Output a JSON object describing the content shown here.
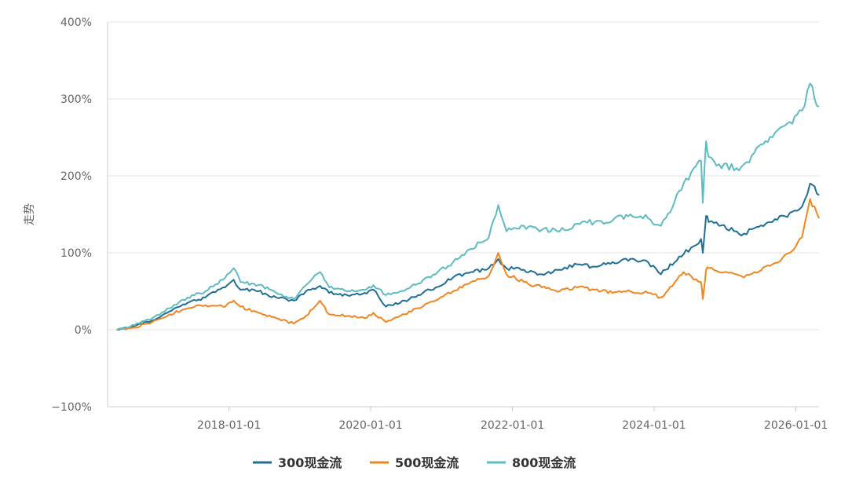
{
  "chart_data": {
    "type": "line",
    "ylabel": "走势",
    "ylim": [
      -100,
      400
    ],
    "y_ticks": [
      400,
      300,
      200,
      100,
      0,
      -100
    ],
    "y_tick_labels": [
      "400%",
      "300%",
      "200%",
      "100%",
      "0%",
      "−100%"
    ],
    "x_tick_labels": [
      "2018-01-01",
      "2020-01-01",
      "2022-01-01",
      "2024-01-01",
      "2026-01-01"
    ],
    "x_tick_dates": [
      "2018-01-01",
      "2020-01-01",
      "2022-01-01",
      "2024-01-01",
      "2026-01-01"
    ],
    "x_range": [
      "2016-04-15",
      "2026-04-30"
    ],
    "grid": "horizontal",
    "legend_position": "bottom",
    "x": [
      "2016-06-01",
      "2016-09-01",
      "2016-12-01",
      "2017-03-01",
      "2017-06-01",
      "2017-09-01",
      "2017-12-01",
      "2018-01-25",
      "2018-03-01",
      "2018-06-01",
      "2018-09-01",
      "2018-12-01",
      "2019-02-01",
      "2019-04-15",
      "2019-06-01",
      "2019-09-01",
      "2019-12-01",
      "2020-01-15",
      "2020-03-20",
      "2020-06-01",
      "2020-09-01",
      "2020-12-01",
      "2021-03-01",
      "2021-06-01",
      "2021-09-01",
      "2021-10-20",
      "2021-12-01",
      "2022-03-01",
      "2022-06-01",
      "2022-09-01",
      "2022-12-01",
      "2023-03-01",
      "2023-06-01",
      "2023-09-01",
      "2023-12-01",
      "2024-02-05",
      "2024-03-01",
      "2024-06-01",
      "2024-08-30",
      "2024-09-08",
      "2024-09-25",
      "2024-10-08",
      "2024-12-01",
      "2025-03-01",
      "2025-04-08",
      "2025-06-01",
      "2025-09-01",
      "2025-12-01",
      "2026-02-01",
      "2026-03-15",
      "2026-04-30"
    ],
    "series": [
      {
        "name": "300现金流",
        "color": "#1f6f95",
        "values": [
          0,
          5,
          12,
          24,
          35,
          42,
          55,
          65,
          52,
          50,
          42,
          38,
          50,
          57,
          48,
          45,
          48,
          52,
          30,
          35,
          45,
          55,
          68,
          75,
          80,
          92,
          80,
          78,
          72,
          78,
          85,
          82,
          88,
          92,
          88,
          72,
          78,
          98,
          118,
          100,
          148,
          140,
          135,
          128,
          125,
          132,
          140,
          152,
          160,
          190,
          175
        ]
      },
      {
        "name": "500现金流",
        "color": "#f0861f",
        "values": [
          0,
          3,
          10,
          20,
          28,
          32,
          30,
          38,
          30,
          22,
          15,
          8,
          18,
          38,
          20,
          18,
          15,
          22,
          10,
          18,
          28,
          38,
          50,
          62,
          70,
          100,
          72,
          62,
          55,
          50,
          55,
          52,
          48,
          50,
          48,
          42,
          48,
          75,
          62,
          40,
          78,
          80,
          75,
          72,
          68,
          75,
          85,
          100,
          120,
          170,
          145
        ]
      },
      {
        "name": "800现金流",
        "color": "#5dbcbf",
        "values": [
          0,
          6,
          15,
          28,
          42,
          50,
          65,
          80,
          62,
          58,
          48,
          40,
          58,
          75,
          55,
          50,
          52,
          58,
          45,
          50,
          60,
          72,
          88,
          105,
          120,
          162,
          128,
          135,
          130,
          128,
          138,
          140,
          142,
          150,
          145,
          135,
          145,
          190,
          220,
          165,
          245,
          225,
          215,
          210,
          215,
          230,
          250,
          270,
          285,
          320,
          290
        ]
      }
    ]
  }
}
